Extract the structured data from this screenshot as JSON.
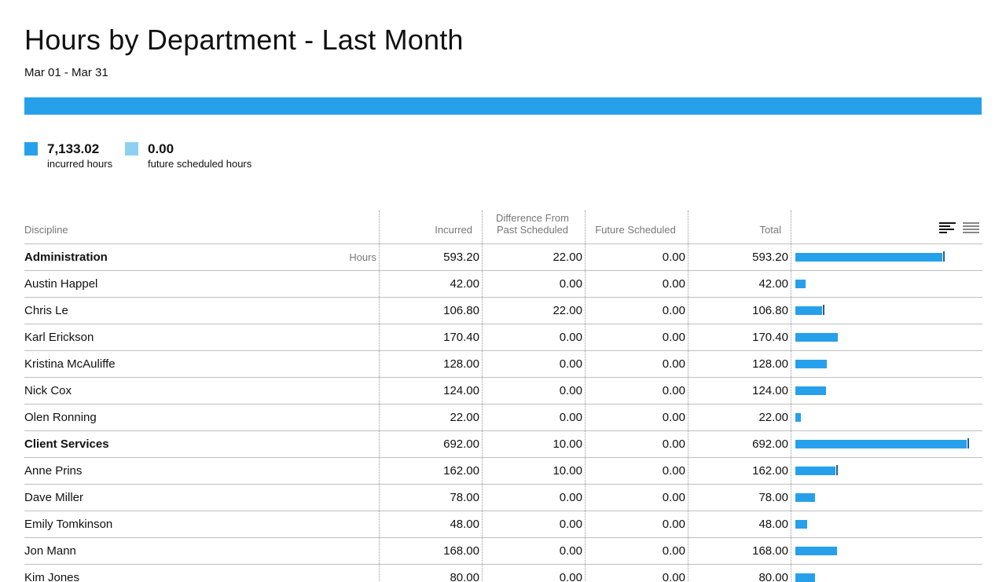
{
  "header": {
    "title": "Hours by Department - Last Month",
    "date_range": "Mar 01 - Mar 31"
  },
  "summary": {
    "incurred_fraction": 1.0,
    "incurred_value": "7,133.02",
    "incurred_label": "incurred hours",
    "future_value": "0.00",
    "future_label": "future scheduled hours"
  },
  "colors": {
    "incurred": "#27a0ec",
    "future": "#8fd0f2",
    "tick": "#2b5b86"
  },
  "columns": {
    "discipline": "Discipline",
    "incurred": "Incurred",
    "difference_line1": "Difference From",
    "difference_line2": "Past Scheduled",
    "future": "Future Scheduled",
    "total": "Total"
  },
  "view_toggle": {
    "icon_a": "bar-chart-view-icon",
    "icon_b": "list-view-icon"
  },
  "rows": [
    {
      "name": "Administration",
      "group": true,
      "unit": "Hours",
      "incurred": "593.20",
      "difference": "22.00",
      "future": "0.00",
      "total": "593.20",
      "incurred_h": 593.2,
      "diff_h": 22.0
    },
    {
      "name": "Austin Happel",
      "group": false,
      "unit": "",
      "incurred": "42.00",
      "difference": "0.00",
      "future": "0.00",
      "total": "42.00",
      "incurred_h": 42.0,
      "diff_h": 0
    },
    {
      "name": "Chris Le",
      "group": false,
      "unit": "",
      "incurred": "106.80",
      "difference": "22.00",
      "future": "0.00",
      "total": "106.80",
      "incurred_h": 106.8,
      "diff_h": 22.0
    },
    {
      "name": "Karl Erickson",
      "group": false,
      "unit": "",
      "incurred": "170.40",
      "difference": "0.00",
      "future": "0.00",
      "total": "170.40",
      "incurred_h": 170.4,
      "diff_h": 0
    },
    {
      "name": "Kristina McAuliffe",
      "group": false,
      "unit": "",
      "incurred": "128.00",
      "difference": "0.00",
      "future": "0.00",
      "total": "128.00",
      "incurred_h": 128.0,
      "diff_h": 0
    },
    {
      "name": "Nick Cox",
      "group": false,
      "unit": "",
      "incurred": "124.00",
      "difference": "0.00",
      "future": "0.00",
      "total": "124.00",
      "incurred_h": 124.0,
      "diff_h": 0
    },
    {
      "name": "Olen Ronning",
      "group": false,
      "unit": "",
      "incurred": "22.00",
      "difference": "0.00",
      "future": "0.00",
      "total": "22.00",
      "incurred_h": 22.0,
      "diff_h": 0
    },
    {
      "name": "Client Services",
      "group": true,
      "unit": "",
      "incurred": "692.00",
      "difference": "10.00",
      "future": "0.00",
      "total": "692.00",
      "incurred_h": 692.0,
      "diff_h": 10.0
    },
    {
      "name": "Anne Prins",
      "group": false,
      "unit": "",
      "incurred": "162.00",
      "difference": "10.00",
      "future": "0.00",
      "total": "162.00",
      "incurred_h": 162.0,
      "diff_h": 10.0
    },
    {
      "name": "Dave Miller",
      "group": false,
      "unit": "",
      "incurred": "78.00",
      "difference": "0.00",
      "future": "0.00",
      "total": "78.00",
      "incurred_h": 78.0,
      "diff_h": 0
    },
    {
      "name": "Emily Tomkinson",
      "group": false,
      "unit": "",
      "incurred": "48.00",
      "difference": "0.00",
      "future": "0.00",
      "total": "48.00",
      "incurred_h": 48.0,
      "diff_h": 0
    },
    {
      "name": "Jon Mann",
      "group": false,
      "unit": "",
      "incurred": "168.00",
      "difference": "0.00",
      "future": "0.00",
      "total": "168.00",
      "incurred_h": 168.0,
      "diff_h": 0
    },
    {
      "name": "Kim Jones",
      "group": false,
      "unit": "",
      "incurred": "80.00",
      "difference": "0.00",
      "future": "0.00",
      "total": "80.00",
      "incurred_h": 80.0,
      "diff_h": 0
    }
  ]
}
